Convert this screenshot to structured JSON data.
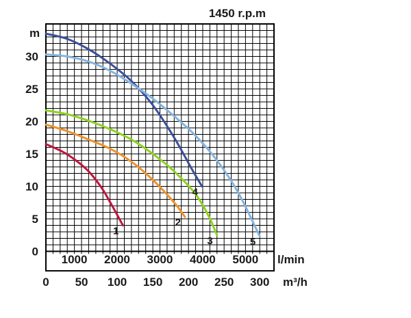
{
  "chart_data": {
    "type": "line",
    "title": "1450 r.p.m",
    "y_unit": "m",
    "y_ticks": [
      0,
      5,
      10,
      15,
      20,
      25,
      30
    ],
    "ylim": [
      -3,
      35
    ],
    "x_unit_flow": "l/min",
    "x_ticks_flow": [
      1000,
      2000,
      3000,
      4000,
      5000
    ],
    "x_unit_volume": "m³/h",
    "x_ticks_volume": [
      0,
      50,
      100,
      150,
      200,
      250,
      300
    ],
    "xlim": [
      0,
      5333
    ],
    "grid": true,
    "series": [
      {
        "name": "1",
        "color": "#c0143c",
        "points": [
          [
            0,
            16.5
          ],
          [
            400,
            15.3
          ],
          [
            700,
            14
          ],
          [
            1000,
            12.3
          ],
          [
            1300,
            9.8
          ],
          [
            1550,
            7
          ],
          [
            1800,
            4
          ]
        ]
      },
      {
        "name": "2",
        "color": "#f0922a",
        "points": [
          [
            0,
            19.5
          ],
          [
            500,
            18.5
          ],
          [
            1000,
            17.2
          ],
          [
            1500,
            15.8
          ],
          [
            2000,
            13.8
          ],
          [
            2500,
            11
          ],
          [
            3000,
            7.5
          ],
          [
            3250,
            5.3
          ]
        ]
      },
      {
        "name": "3",
        "color": "#8ed21e",
        "points": [
          [
            0,
            21.7
          ],
          [
            500,
            21.1
          ],
          [
            1000,
            20.1
          ],
          [
            1500,
            18.8
          ],
          [
            2000,
            17.2
          ],
          [
            2500,
            15
          ],
          [
            3000,
            12.3
          ],
          [
            3500,
            8.8
          ],
          [
            3800,
            5.5
          ],
          [
            4000,
            2.5
          ]
        ]
      },
      {
        "name": "4",
        "color": "#3b4f9a",
        "points": [
          [
            0,
            33.5
          ],
          [
            500,
            32.7
          ],
          [
            1000,
            31.1
          ],
          [
            1500,
            28.9
          ],
          [
            2000,
            26.2
          ],
          [
            2500,
            22.5
          ],
          [
            3000,
            17.5
          ],
          [
            3400,
            12.8
          ],
          [
            3650,
            10
          ]
        ]
      },
      {
        "name": "5",
        "color": "#84b4dd",
        "points": [
          [
            0,
            30.3
          ],
          [
            500,
            30
          ],
          [
            1000,
            29.2
          ],
          [
            1500,
            27.8
          ],
          [
            2000,
            25.8
          ],
          [
            2500,
            23.5
          ],
          [
            3000,
            20.8
          ],
          [
            3500,
            17.8
          ],
          [
            4000,
            14
          ],
          [
            4500,
            9
          ],
          [
            5000,
            2.3
          ]
        ]
      }
    ]
  }
}
